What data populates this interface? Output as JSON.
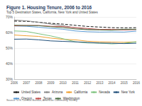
{
  "chart_data": {
    "type": "line",
    "title": "Figure 1. Housing Tenure, 2006 to 2016",
    "subtitle": "Top 5 Destination States, California, New York and United States",
    "source": "Source: U.S. Census Bureau, American Community Survey",
    "categories": [
      "2006",
      "2007",
      "2008",
      "2009",
      "2010",
      "2011",
      "2012",
      "2013",
      "2014",
      "2015",
      "2016"
    ],
    "series": [
      {
        "name": "United States",
        "color": "#1a1a1a",
        "line_style": "dashed",
        "values": [
          67.3,
          67.2,
          66.6,
          65.9,
          65.4,
          64.6,
          63.9,
          63.5,
          63.1,
          63.0,
          63.1
        ]
      },
      {
        "name": "Arizona",
        "color": "#8a8a8a",
        "line_style": "solid",
        "values": [
          68.0,
          67.5,
          66.6,
          65.4,
          64.4,
          63.0,
          62.0,
          61.9,
          61.6,
          61.8,
          62.0
        ]
      },
      {
        "name": "California",
        "color": "#f0a030",
        "line_style": "solid",
        "values": [
          58.4,
          57.9,
          57.5,
          56.4,
          55.6,
          55.3,
          54.4,
          54.0,
          53.8,
          53.7,
          54.0
        ]
      },
      {
        "name": "Nevada",
        "color": "#7cc37c",
        "line_style": "solid",
        "values": [
          61.0,
          60.7,
          59.2,
          57.8,
          56.0,
          54.0,
          53.3,
          53.2,
          52.7,
          53.1,
          54.0
        ]
      },
      {
        "name": "New York",
        "color": "#1f4e79",
        "line_style": "solid",
        "values": [
          55.7,
          55.8,
          55.3,
          54.6,
          54.3,
          54.0,
          53.6,
          53.2,
          53.1,
          52.9,
          53.1
        ]
      },
      {
        "name": "Oregon",
        "color": "#5b9bd5",
        "line_style": "solid",
        "values": [
          64.2,
          64.0,
          63.4,
          62.7,
          62.1,
          61.0,
          60.5,
          60.3,
          60.4,
          60.3,
          60.9
        ]
      },
      {
        "name": "Texas",
        "color": "#c0504d",
        "line_style": "solid",
        "values": [
          64.3,
          64.5,
          64.5,
          64.0,
          63.8,
          63.1,
          62.6,
          62.0,
          62.0,
          61.7,
          61.9
        ]
      },
      {
        "name": "Washington",
        "color": "#4b6f44",
        "line_style": "solid",
        "values": [
          64.7,
          64.5,
          64.4,
          63.7,
          63.1,
          62.3,
          61.8,
          61.7,
          61.5,
          62.1,
          62.1
        ]
      }
    ],
    "ylim": [
      30,
      70
    ],
    "yticks": [
      {
        "value": 30,
        "label": "30%"
      },
      {
        "value": 40,
        "label": "40%"
      },
      {
        "value": 50,
        "label": "50%"
      },
      {
        "value": 60,
        "label": "60%"
      },
      {
        "value": 70,
        "label": "70%"
      }
    ],
    "grid": true,
    "legend": "bottom"
  }
}
